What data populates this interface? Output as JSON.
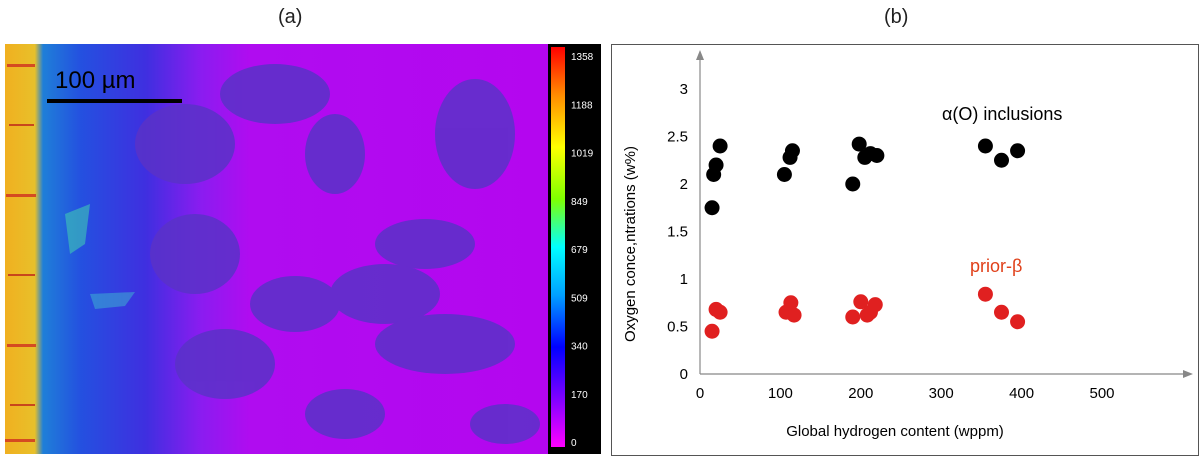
{
  "panel_a": {
    "label": "(a)",
    "scale_bar_label": "100 µm",
    "colorbar_ticks": [
      "1358",
      "1188",
      "1019",
      "849",
      "679",
      "509",
      "340",
      "170",
      "0"
    ]
  },
  "panel_b": {
    "label": "(b)",
    "annotation_black": "α(O) inclusions",
    "annotation_red": "prior-β"
  },
  "colors": {
    "black_series": "#000000",
    "red_series": "#e02020",
    "red_annotation": "#e0401a"
  },
  "chart_data": {
    "type": "scatter",
    "xlabel": "Global hydrogen content (wppm)",
    "ylabel": "Oxygen conce,ntrations (w%)",
    "xlim": [
      0,
      500
    ],
    "ylim": [
      0,
      3
    ],
    "x_ticks": [
      "0",
      "100",
      "200",
      "300",
      "400",
      "500"
    ],
    "y_ticks": [
      "0",
      "0.5",
      "1",
      "1.5",
      "2",
      "2.5",
      "3"
    ],
    "grid": false,
    "series": [
      {
        "color": "#000000",
        "points": [
          [
            15,
            1.75
          ],
          [
            17,
            2.1
          ],
          [
            20,
            2.2
          ],
          [
            25,
            2.4
          ],
          [
            105,
            2.1
          ],
          [
            112,
            2.28
          ],
          [
            115,
            2.35
          ],
          [
            190,
            2.0
          ],
          [
            198,
            2.42
          ],
          [
            205,
            2.28
          ],
          [
            212,
            2.32
          ],
          [
            220,
            2.3
          ],
          [
            355,
            2.4
          ],
          [
            375,
            2.25
          ],
          [
            395,
            2.35
          ]
        ]
      },
      {
        "color": "#e02020",
        "points": [
          [
            15,
            0.45
          ],
          [
            20,
            0.68
          ],
          [
            25,
            0.65
          ],
          [
            107,
            0.65
          ],
          [
            113,
            0.75
          ],
          [
            117,
            0.62
          ],
          [
            190,
            0.6
          ],
          [
            200,
            0.76
          ],
          [
            208,
            0.62
          ],
          [
            212,
            0.65
          ],
          [
            218,
            0.73
          ],
          [
            355,
            0.84
          ],
          [
            375,
            0.65
          ],
          [
            395,
            0.55
          ]
        ]
      }
    ]
  }
}
